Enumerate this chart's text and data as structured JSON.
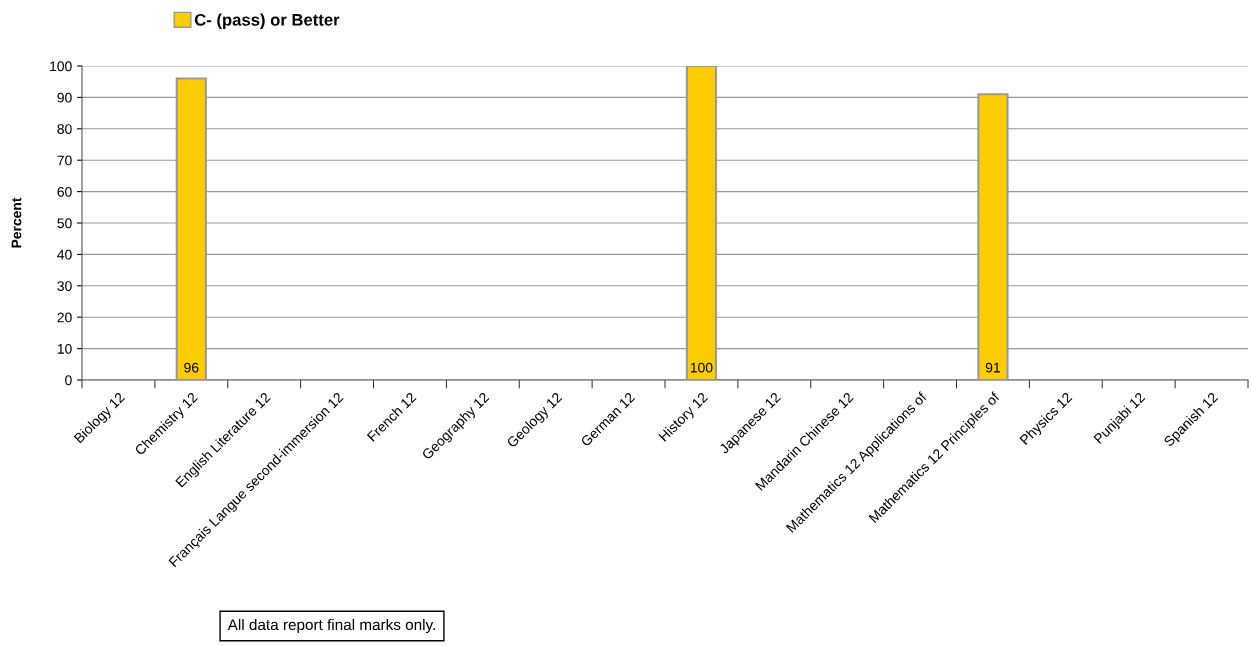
{
  "chart_data": {
    "type": "bar",
    "categories": [
      "Biology 12",
      "Chemistry 12",
      "English Literature 12",
      "Français Langue second-immersion 12",
      "French 12",
      "Geography 12",
      "Geology 12",
      "German 12",
      "History 12",
      "Japanese 12",
      "Mandarin Chinese 12",
      "Mathematics 12 Applications of",
      "Mathematics 12 Principles of",
      "Physics 12",
      "Punjabi 12",
      "Spanish 12"
    ],
    "series": [
      {
        "name": "C- (pass) or Better",
        "color": "#ffcc00",
        "values": [
          null,
          96,
          null,
          null,
          null,
          null,
          null,
          null,
          100,
          null,
          null,
          null,
          91,
          null,
          null,
          null
        ]
      }
    ],
    "ylabel": "Percent",
    "ylim": [
      0,
      100
    ],
    "yticks": [
      0,
      10,
      20,
      30,
      40,
      50,
      60,
      70,
      80,
      90,
      100
    ],
    "grid": "y",
    "legend": "top",
    "data_labels": true,
    "annotations": [
      "All data report final marks only."
    ]
  }
}
